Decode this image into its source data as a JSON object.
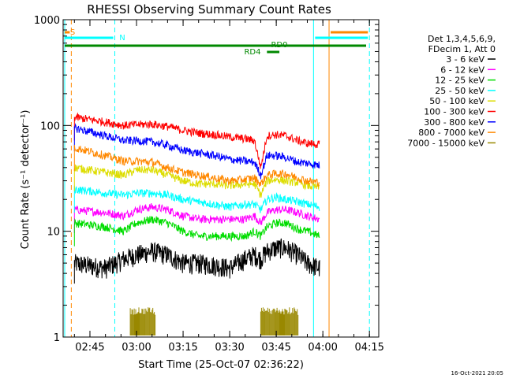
{
  "chart_data": {
    "type": "line",
    "title": "RHESSI Observing Summary Count Rates",
    "xlabel": "Start Time (25-Oct-07 02:36:22)",
    "ylabel": "Count Rate (s⁻¹ detector⁻¹)",
    "x_axis": {
      "unit": "UT time",
      "start": "02:36:22",
      "end": "04:18:00",
      "tick_labels": [
        "02:45",
        "03:00",
        "03:15",
        "03:30",
        "03:45",
        "04:00",
        "04:15"
      ]
    },
    "y_axis": {
      "scale": "log",
      "ylim": [
        1,
        1000
      ],
      "tick_labels": [
        "1",
        "10",
        "100",
        "1000"
      ]
    },
    "legend": {
      "position": "right",
      "header": [
        "Det 1,3,4,5,6,9,",
        "FDecim 1, Att 0"
      ]
    },
    "series": [
      {
        "name": "3 - 6 keV",
        "color": "#000000",
        "points": [
          [
            "02:40",
            5.0
          ],
          [
            "02:50",
            4.5
          ],
          [
            "02:56",
            5.5
          ],
          [
            "03:00",
            6.0
          ],
          [
            "03:05",
            6.5
          ],
          [
            "03:10",
            6.0
          ],
          [
            "03:15",
            5.0
          ],
          [
            "03:20",
            5.0
          ],
          [
            "03:25",
            4.8
          ],
          [
            "03:30",
            4.5
          ],
          [
            "03:35",
            5.5
          ],
          [
            "03:38",
            6.0
          ],
          [
            "03:40",
            5.5
          ],
          [
            "03:42",
            6.5
          ],
          [
            "03:45",
            7.0
          ],
          [
            "03:48",
            7.0
          ],
          [
            "03:52",
            6.0
          ],
          [
            "03:55",
            5.0
          ],
          [
            "03:59",
            4.5
          ]
        ]
      },
      {
        "name": "6 - 12 keV",
        "color": "#ff00ff",
        "points": [
          [
            "02:40",
            16
          ],
          [
            "02:50",
            15
          ],
          [
            "02:56",
            14
          ],
          [
            "03:00",
            16
          ],
          [
            "03:05",
            17
          ],
          [
            "03:10",
            16
          ],
          [
            "03:15",
            14
          ],
          [
            "03:20",
            13
          ],
          [
            "03:25",
            13
          ],
          [
            "03:30",
            13
          ],
          [
            "03:35",
            13
          ],
          [
            "03:38",
            14
          ],
          [
            "03:40",
            12
          ],
          [
            "03:42",
            15
          ],
          [
            "03:45",
            16
          ],
          [
            "03:48",
            16
          ],
          [
            "03:52",
            15
          ],
          [
            "03:55",
            14
          ],
          [
            "03:59",
            13
          ]
        ]
      },
      {
        "name": "12 - 25 keV",
        "color": "#00dd00",
        "points": [
          [
            "02:40",
            12
          ],
          [
            "02:50",
            11
          ],
          [
            "02:56",
            10
          ],
          [
            "03:00",
            12
          ],
          [
            "03:05",
            13
          ],
          [
            "03:10",
            12
          ],
          [
            "03:15",
            10
          ],
          [
            "03:20",
            9
          ],
          [
            "03:25",
            9
          ],
          [
            "03:30",
            9
          ],
          [
            "03:35",
            9
          ],
          [
            "03:38",
            10
          ],
          [
            "03:40",
            9
          ],
          [
            "03:42",
            11
          ],
          [
            "03:45",
            12
          ],
          [
            "03:48",
            12
          ],
          [
            "03:52",
            10.5
          ],
          [
            "03:55",
            10
          ],
          [
            "03:59",
            9
          ]
        ]
      },
      {
        "name": "25 - 50 keV",
        "color": "#00ffff",
        "points": [
          [
            "02:40",
            25
          ],
          [
            "02:50",
            23
          ],
          [
            "02:56",
            22
          ],
          [
            "03:00",
            23
          ],
          [
            "03:05",
            23
          ],
          [
            "03:10",
            22
          ],
          [
            "03:15",
            20
          ],
          [
            "03:20",
            19
          ],
          [
            "03:25",
            18
          ],
          [
            "03:30",
            17
          ],
          [
            "03:35",
            18
          ],
          [
            "03:38",
            18
          ],
          [
            "03:40",
            16
          ],
          [
            "03:42",
            20
          ],
          [
            "03:45",
            21
          ],
          [
            "03:48",
            20
          ],
          [
            "03:52",
            19
          ],
          [
            "03:55",
            18
          ],
          [
            "03:59",
            17
          ]
        ]
      },
      {
        "name": "50 - 100 keV",
        "color": "#dddd00",
        "points": [
          [
            "02:40",
            40
          ],
          [
            "02:50",
            36
          ],
          [
            "02:56",
            34
          ],
          [
            "03:00",
            38
          ],
          [
            "03:05",
            38
          ],
          [
            "03:10",
            34
          ],
          [
            "03:15",
            30
          ],
          [
            "03:20",
            28
          ],
          [
            "03:25",
            28
          ],
          [
            "03:30",
            27
          ],
          [
            "03:35",
            28
          ],
          [
            "03:38",
            28
          ],
          [
            "03:40",
            22
          ],
          [
            "03:42",
            30
          ],
          [
            "03:45",
            31
          ],
          [
            "03:48",
            30
          ],
          [
            "03:52",
            29
          ],
          [
            "03:55",
            27
          ],
          [
            "03:59",
            26
          ]
        ]
      },
      {
        "name": "100 - 300 keV",
        "color": "#ff0000",
        "points": [
          [
            "02:40",
            120
          ],
          [
            "02:50",
            108
          ],
          [
            "02:56",
            100
          ],
          [
            "03:00",
            102
          ],
          [
            "03:05",
            103
          ],
          [
            "03:10",
            98
          ],
          [
            "03:15",
            90
          ],
          [
            "03:20",
            85
          ],
          [
            "03:25",
            82
          ],
          [
            "03:30",
            78
          ],
          [
            "03:35",
            75
          ],
          [
            "03:38",
            72
          ],
          [
            "03:40",
            40
          ],
          [
            "03:42",
            80
          ],
          [
            "03:45",
            82
          ],
          [
            "03:48",
            80
          ],
          [
            "03:52",
            72
          ],
          [
            "03:55",
            68
          ],
          [
            "03:59",
            66
          ]
        ]
      },
      {
        "name": "300 - 800 keV",
        "color": "#0000ff",
        "points": [
          [
            "02:40",
            95
          ],
          [
            "02:50",
            80
          ],
          [
            "02:56",
            72
          ],
          [
            "03:00",
            72
          ],
          [
            "03:05",
            70
          ],
          [
            "03:10",
            65
          ],
          [
            "03:15",
            58
          ],
          [
            "03:20",
            55
          ],
          [
            "03:25",
            52
          ],
          [
            "03:30",
            48
          ],
          [
            "03:35",
            46
          ],
          [
            "03:38",
            45
          ],
          [
            "03:40",
            34
          ],
          [
            "03:42",
            52
          ],
          [
            "03:45",
            52
          ],
          [
            "03:48",
            50
          ],
          [
            "03:52",
            45
          ],
          [
            "03:55",
            44
          ],
          [
            "03:59",
            42
          ]
        ]
      },
      {
        "name": "800 - 7000 keV",
        "color": "#ff8800",
        "points": [
          [
            "02:40",
            62
          ],
          [
            "02:50",
            52
          ],
          [
            "02:56",
            46
          ],
          [
            "03:00",
            46
          ],
          [
            "03:05",
            45
          ],
          [
            "03:10",
            40
          ],
          [
            "03:15",
            36
          ],
          [
            "03:20",
            34
          ],
          [
            "03:25",
            32
          ],
          [
            "03:30",
            30
          ],
          [
            "03:35",
            31
          ],
          [
            "03:38",
            32
          ],
          [
            "03:40",
            28
          ],
          [
            "03:42",
            34
          ],
          [
            "03:45",
            35
          ],
          [
            "03:48",
            35
          ],
          [
            "03:52",
            32
          ],
          [
            "03:55",
            30
          ],
          [
            "03:59",
            29
          ]
        ]
      },
      {
        "name": "7000 - 15000 keV",
        "color": "#998800",
        "points": []
      }
    ],
    "annotations": [
      {
        "text": "S",
        "color": "#ff8800"
      },
      {
        "text": "N",
        "color": "#00ffff"
      },
      {
        "text": "RD0",
        "color": "#008800"
      },
      {
        "text": "RD4",
        "color": "#008800"
      }
    ]
  },
  "footer": {
    "timestamp": "16-Oct-2021 20:05"
  }
}
